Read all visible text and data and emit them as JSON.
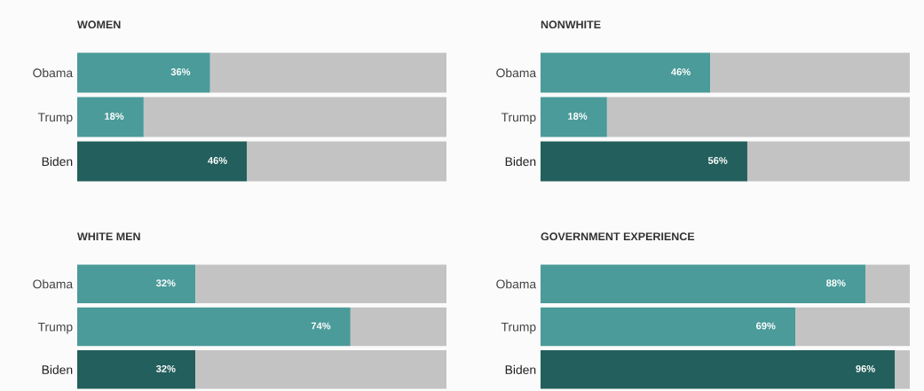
{
  "chart_data": [
    {
      "type": "bar",
      "orientation": "horizontal",
      "stacked": true,
      "title": "WOMEN",
      "categories": [
        "Obama",
        "Trump",
        "Biden"
      ],
      "xlim": [
        0,
        100
      ],
      "tick_labels": "y",
      "grid": false,
      "legend": false,
      "series": [
        {
          "colors": [
            "#4a9b99",
            "#4a9b99",
            "#235f5c"
          ],
          "values": [
            36,
            18,
            46
          ],
          "value_labels": [
            "36%",
            "18%",
            "46%"
          ]
        },
        {
          "color": "#c3c3c3",
          "values": [
            64,
            82,
            54
          ]
        }
      ]
    },
    {
      "type": "bar",
      "orientation": "horizontal",
      "stacked": true,
      "title": "NONWHITE",
      "categories": [
        "Obama",
        "Trump",
        "Biden"
      ],
      "xlim": [
        0,
        100
      ],
      "tick_labels": "y",
      "grid": false,
      "legend": false,
      "series": [
        {
          "colors": [
            "#4a9b99",
            "#4a9b99",
            "#235f5c"
          ],
          "values": [
            46,
            18,
            56
          ],
          "value_labels": [
            "46%",
            "18%",
            "56%"
          ]
        },
        {
          "color": "#c3c3c3",
          "values": [
            54,
            82,
            44
          ]
        }
      ]
    },
    {
      "type": "bar",
      "orientation": "horizontal",
      "stacked": true,
      "title": "WHITE MEN",
      "categories": [
        "Obama",
        "Trump",
        "Biden"
      ],
      "xlim": [
        0,
        100
      ],
      "tick_labels": "y",
      "grid": false,
      "legend": false,
      "series": [
        {
          "colors": [
            "#4a9b99",
            "#4a9b99",
            "#235f5c"
          ],
          "values": [
            32,
            74,
            32
          ],
          "value_labels": [
            "32%",
            "74%",
            "32%"
          ]
        },
        {
          "color": "#c3c3c3",
          "values": [
            68,
            26,
            68
          ]
        }
      ]
    },
    {
      "type": "bar",
      "orientation": "horizontal",
      "stacked": true,
      "title": "GOVERNMENT EXPERIENCE",
      "categories": [
        "Obama",
        "Trump",
        "Biden"
      ],
      "xlim": [
        0,
        100
      ],
      "tick_labels": "y",
      "grid": false,
      "legend": false,
      "series": [
        {
          "colors": [
            "#4a9b99",
            "#4a9b99",
            "#235f5c"
          ],
          "values": [
            88,
            69,
            96
          ],
          "value_labels": [
            "88%",
            "69%",
            "96%"
          ]
        },
        {
          "color": "#c3c3c3",
          "values": [
            12,
            31,
            4
          ]
        }
      ]
    }
  ]
}
